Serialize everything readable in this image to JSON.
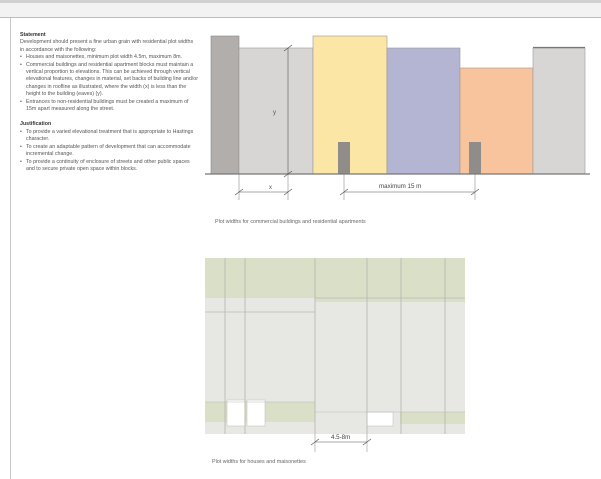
{
  "statement": {
    "heading": "Statement",
    "intro": "Development should present a fine urban grain with residential plot widths in accordance with the following:",
    "bullets": [
      "Houses and maisonettes, minimum plot width 4.5m, maximum 8m.",
      "Commercial buildings and residential apartment blocks must maintain a vertical proportion to elevations. This can be achieved through vertical elevational features, changes in material, set backs of building line and/or changes in roofline as illustrated, where the width (x) is less than the height to the building (eaves) (y).",
      "Entrances to non-residential buildings must be created a maximum of 15m apart measured along the street."
    ]
  },
  "justification": {
    "heading": "Justification",
    "bullets": [
      "To provide a varied elevational treatment that is appropriate to Hastings character.",
      "To create an adaptable pattern of development that can accommodate incremental change.",
      "To provide a continuity of enclosure of streets and other public spaces and to secure private open space within blocks."
    ]
  },
  "figure_top": {
    "label_y": "y",
    "label_x": "x",
    "label_max": "maximum 15 m",
    "caption": "Plot widths for commercial buildings and residential apartments",
    "colors": {
      "grey_light": "#d8d6d4",
      "grey_dark": "#b2aeab",
      "yellow": "#fbe6a6",
      "blue": "#b3b5d2",
      "orange": "#f8c49d",
      "door": "#8f8c89"
    }
  },
  "figure_bottom": {
    "label_width": "4.5-8m",
    "caption": "Plot widths for houses and maisonettes",
    "colors": {
      "field": "#e7e7e3",
      "green": "#d9e0c7",
      "line": "#b9b9b5"
    }
  }
}
